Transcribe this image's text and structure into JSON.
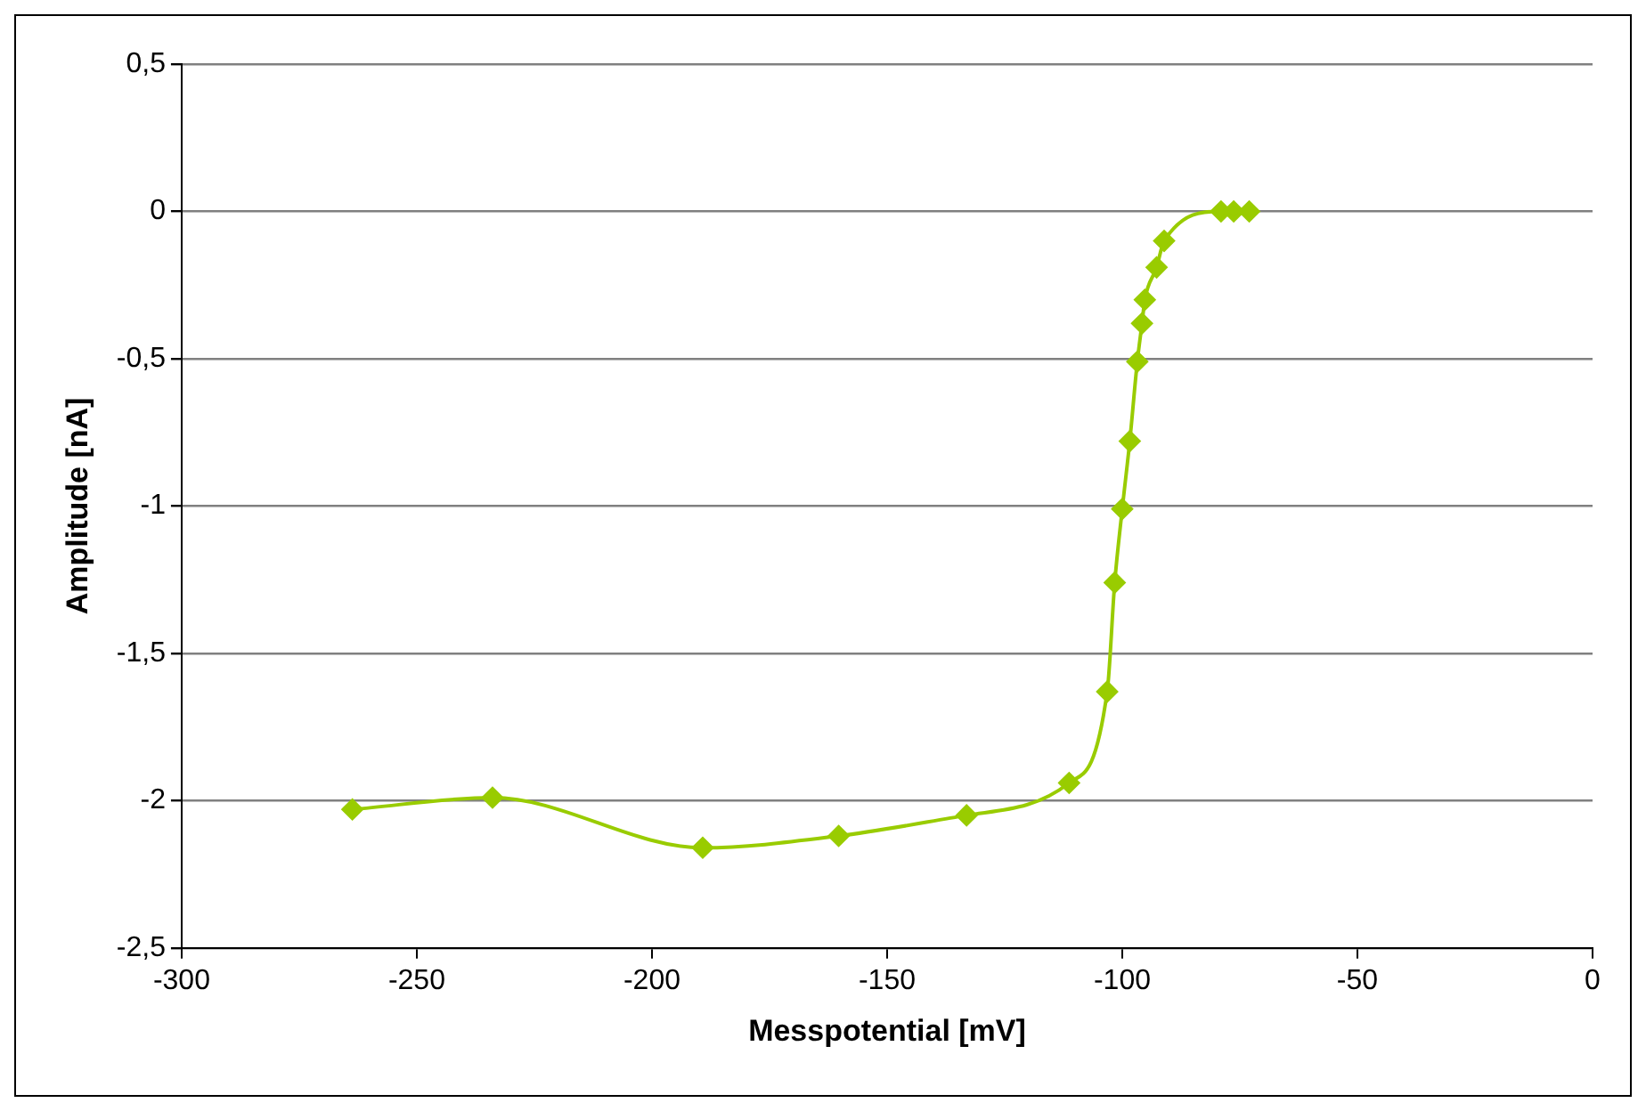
{
  "chart_data": {
    "type": "line",
    "xlabel": "Messpotential [mV]",
    "ylabel": "Amplitude [nA]",
    "x": [
      -263.7,
      -233.9,
      -189.2,
      -160.3,
      -133.1,
      -111.3,
      -103.2,
      -101.6,
      -100,
      -98.4,
      -96.8,
      -95.8,
      -95.2,
      -92.7,
      -91.1,
      -79,
      -76.3,
      -73
    ],
    "series": [
      {
        "color": "#99cc00",
        "values": [
          -2.03,
          -1.99,
          -2.16,
          -2.12,
          -2.05,
          -1.94,
          -1.63,
          -1.26,
          -1.01,
          -0.78,
          -0.51,
          -0.38,
          -0.3,
          -0.19,
          -0.1,
          0,
          0,
          0
        ]
      }
    ],
    "xlim": [
      -300,
      0
    ],
    "xticks": [
      -300,
      -250,
      -200,
      -150,
      -100,
      -50,
      0
    ],
    "ylim": [
      -2.5,
      0.5
    ],
    "yticks": [
      {
        "value": -2.5,
        "label": "-2,5"
      },
      -2,
      {
        "value": -1.5,
        "label": "-1,5"
      },
      -1,
      {
        "value": -0.5,
        "label": "-0,5"
      },
      0,
      {
        "value": 0.5,
        "label": "0,5"
      }
    ],
    "grid": "y",
    "legend": false,
    "marker": "diamond",
    "line_style": "solid"
  }
}
